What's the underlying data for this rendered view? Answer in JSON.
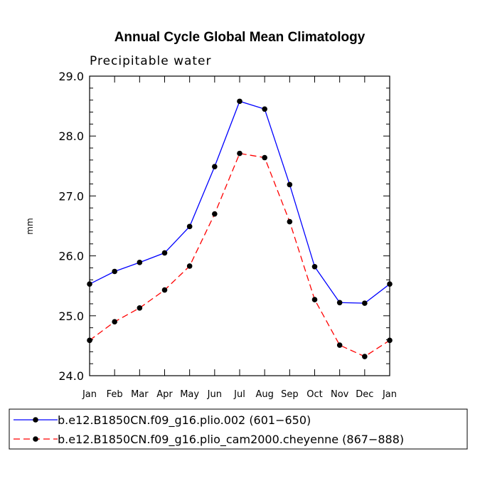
{
  "chart_data": {
    "type": "line",
    "title": "Annual Cycle Global Mean Climatology",
    "subtitle": "Precipitable water",
    "xlabel": "",
    "ylabel": "mm",
    "categories": [
      "Jan",
      "Feb",
      "Mar",
      "Apr",
      "May",
      "Jun",
      "Jul",
      "Aug",
      "Sep",
      "Oct",
      "Nov",
      "Dec",
      "Jan"
    ],
    "ylim": [
      24.0,
      29.0
    ],
    "yticks": [
      24.0,
      25.0,
      26.0,
      27.0,
      28.0,
      29.0
    ],
    "ytick_labels": [
      "24.0",
      "25.0",
      "26.0",
      "27.0",
      "28.0",
      "29.0"
    ],
    "series": [
      {
        "name": "b.e12.B1850CN.f09_g16.plio.002 (601−650)",
        "color": "#0000ff",
        "dash": "solid",
        "values": [
          25.53,
          25.74,
          25.89,
          26.05,
          26.49,
          27.49,
          28.58,
          28.45,
          27.19,
          25.82,
          25.22,
          25.21,
          25.53
        ]
      },
      {
        "name": "b.e12.B1850CN.f09_g16.plio_cam2000.cheyenne (867−888)",
        "color": "#ff0000",
        "dash": "dashed",
        "values": [
          24.59,
          24.9,
          25.13,
          25.43,
          25.83,
          26.7,
          27.71,
          27.64,
          26.57,
          25.27,
          24.51,
          24.32,
          24.59
        ]
      }
    ],
    "legend_position": "bottom-left"
  }
}
